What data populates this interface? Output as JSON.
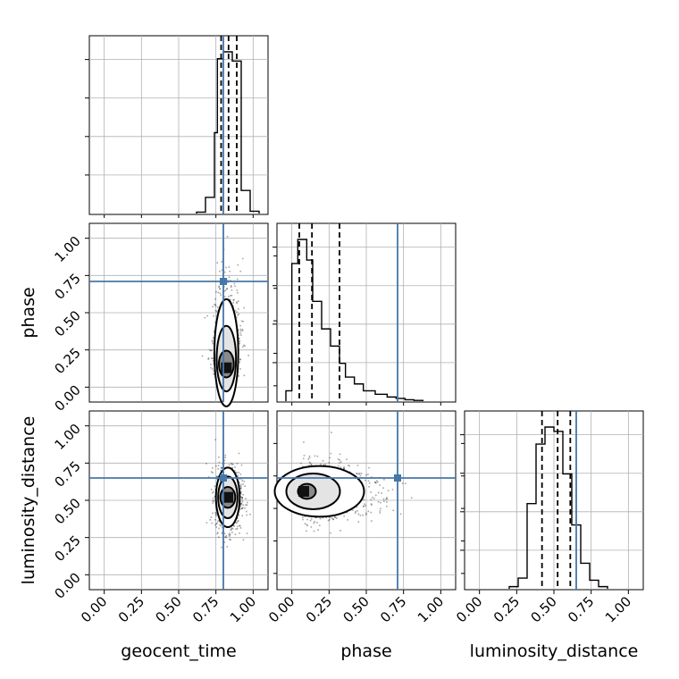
{
  "chart_data": {
    "type": "corner",
    "parameters": [
      "geocent_time",
      "phase",
      "luminosity_distance"
    ],
    "axis_range": [
      -0.1,
      1.1
    ],
    "ticks": [
      0.0,
      0.25,
      0.5,
      0.75,
      1.0
    ],
    "tick_labels": [
      "0.00",
      "0.25",
      "0.50",
      "0.75",
      "1.00"
    ],
    "grid": true,
    "truth": {
      "geocent_time": 0.8,
      "phase": 0.71,
      "luminosity_distance": 0.65
    },
    "truth_color": "#4477aa",
    "histograms": {
      "geocent_time": {
        "bin_edges": [
          0.62,
          0.68,
          0.74,
          0.76,
          0.8,
          0.86,
          0.92,
          0.98,
          1.04
        ],
        "counts": [
          0.3,
          3.5,
          17.5,
          33.5,
          35.0,
          33.0,
          5.0,
          0.5
        ],
        "quantiles": [
          0.785,
          0.835,
          0.89
        ]
      },
      "phase": {
        "bin_edges": [
          -0.04,
          0.0,
          0.04,
          0.1,
          0.14,
          0.2,
          0.26,
          0.32,
          0.36,
          0.42,
          0.48,
          0.56,
          0.64,
          0.7,
          0.76,
          0.82,
          0.88
        ],
        "counts": [
          3,
          40,
          47,
          41,
          29,
          21,
          16,
          11,
          7,
          5,
          3,
          2,
          1.2,
          0.8,
          0.4,
          0.2
        ],
        "quantiles": [
          0.05,
          0.135,
          0.32
        ]
      },
      "luminosity_distance": {
        "bin_edges": [
          0.2,
          0.26,
          0.32,
          0.38,
          0.44,
          0.5,
          0.56,
          0.62,
          0.68,
          0.74,
          0.8,
          0.86
        ],
        "counts": [
          0.5,
          2.5,
          20,
          34,
          38,
          37,
          27,
          15,
          6,
          2,
          0.5
        ],
        "quantiles": [
          0.42,
          0.525,
          0.61
        ]
      }
    },
    "joint_2d": [
      {
        "x": "geocent_time",
        "y": "phase",
        "center": [
          0.82,
          0.13
        ],
        "contour_half_widths": [
          [
            0.05,
            0.09
          ],
          [
            0.065,
            0.22
          ],
          [
            0.08,
            0.36
          ]
        ]
      },
      {
        "x": "geocent_time",
        "y": "luminosity_distance",
        "center": [
          0.83,
          0.52
        ],
        "contour_half_widths": [
          [
            0.05,
            0.07
          ],
          [
            0.065,
            0.14
          ],
          [
            0.08,
            0.2
          ]
        ]
      },
      {
        "x": "phase",
        "y": "luminosity_distance",
        "center": [
          0.08,
          0.56
        ],
        "contour_half_widths": [
          [
            0.06,
            0.05
          ],
          [
            0.18,
            0.12
          ],
          [
            0.3,
            0.17
          ]
        ]
      }
    ]
  }
}
